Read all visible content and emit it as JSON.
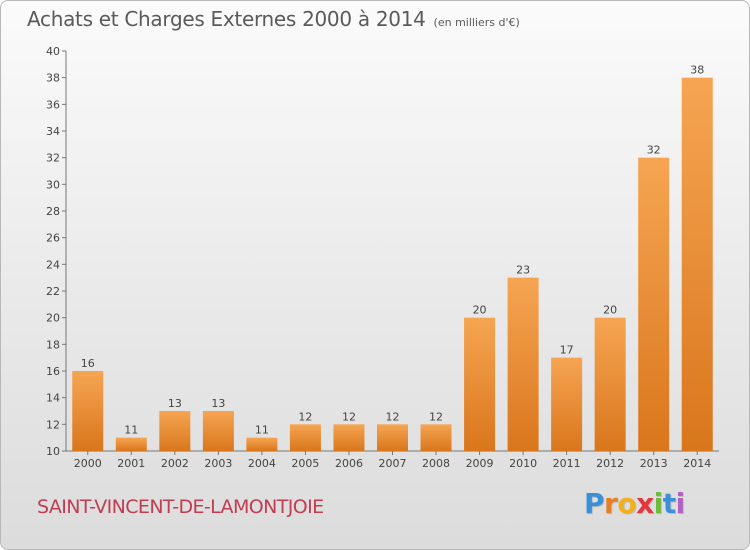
{
  "header": {
    "title": "Achats et Charges Externes 2000 à 2014",
    "unit": "(en milliers d'€)"
  },
  "footer": {
    "commune": "SAINT-VINCENT-DE-LAMONTJOIE",
    "logo": {
      "letters": [
        "P",
        "r",
        "o",
        "x",
        "i",
        "t",
        "i"
      ],
      "colors": [
        "#3b8fd4",
        "#e67e22",
        "#f2b01e",
        "#e4353d",
        "#6dbb3c",
        "#3b8fd4",
        "#b45fc4"
      ]
    }
  },
  "colors": {
    "bar_light": "#f6a552",
    "bar_dark": "#d9761c",
    "axis": "#777777",
    "text": "#444444"
  },
  "chart_data": {
    "type": "bar",
    "title": "Achats et Charges Externes 2000 à 2014",
    "subtitle": "(en milliers d'€)",
    "categories": [
      "2000",
      "2001",
      "2002",
      "2003",
      "2004",
      "2005",
      "2006",
      "2007",
      "2008",
      "2009",
      "2010",
      "2011",
      "2012",
      "2013",
      "2014"
    ],
    "values": [
      16,
      11,
      13,
      13,
      11,
      12,
      12,
      12,
      12,
      20,
      23,
      17,
      20,
      32,
      38
    ],
    "data_labels": [
      "16",
      "11",
      "13",
      "13",
      "11",
      "12",
      "12",
      "12",
      "12",
      "20",
      "23",
      "17",
      "20",
      "32",
      "38"
    ],
    "ylim": [
      10,
      40
    ],
    "yticks": [
      10,
      12,
      14,
      16,
      18,
      20,
      22,
      24,
      26,
      28,
      30,
      32,
      34,
      36,
      38,
      40
    ],
    "grid": false,
    "legend": "none"
  }
}
